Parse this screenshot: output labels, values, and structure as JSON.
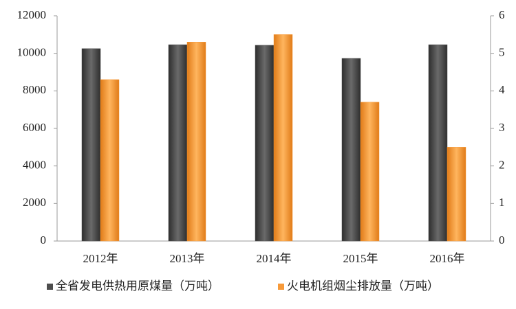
{
  "chart_data": {
    "type": "bar",
    "categories": [
      "2012年",
      "2013年",
      "2014年",
      "2015年",
      "2016年"
    ],
    "series": [
      {
        "name": "全省发电供热用原煤量（万吨）",
        "color": "#4d4d4d",
        "values": [
          10250,
          10460,
          10430,
          9730,
          10460
        ]
      },
      {
        "name": "火电机组烟尘排放量（万吨）",
        "color": "#f79a3a",
        "values": [
          4.3,
          5.3,
          5.5,
          3.7,
          2.5
        ],
        "axis": "y2"
      }
    ],
    "ylim": [
      0,
      12000
    ],
    "yticks": [
      0,
      2000,
      4000,
      6000,
      8000,
      10000,
      12000
    ],
    "y2lim": [
      0,
      6
    ],
    "y2ticks": [
      0,
      1,
      2,
      3,
      4,
      5,
      6
    ],
    "grid": false,
    "legend": "bottom"
  }
}
